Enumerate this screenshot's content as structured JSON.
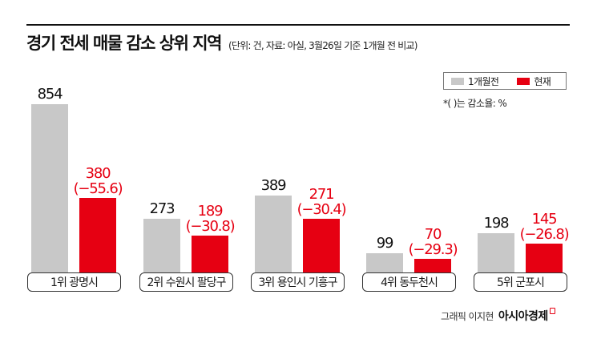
{
  "header": {
    "title": "경기 전세 매물 감소 상위 지역",
    "subtitle": "(단위: 건, 자료: 아실, 3월26일 기준 1개월 전 비교)"
  },
  "legend": {
    "items": [
      {
        "label": "1개월전",
        "color": "#c8c8c8"
      },
      {
        "label": "현재",
        "color": "#e60012"
      }
    ],
    "note": "*( )는 감소율: %"
  },
  "chart_data": {
    "type": "bar",
    "title": "경기 전세 매물 감소 상위 지역",
    "subtitle": "(단위: 건, 자료: 아실, 3월26일 기준 1개월 전 비교)",
    "xlabel": "",
    "ylabel": "건",
    "categories": [
      "1위 광명시",
      "2위 수원시 팔당구",
      "3위 용인시 기흥구",
      "4위 동두천시",
      "5위 군포시"
    ],
    "series": [
      {
        "name": "1개월전",
        "color": "#c8c8c8",
        "values": [
          854,
          273,
          389,
          99,
          198
        ],
        "labels": [
          "854",
          "273",
          "389",
          "99",
          "198"
        ]
      },
      {
        "name": "현재",
        "color": "#e60012",
        "values": [
          380,
          189,
          271,
          70,
          145
        ],
        "labels": [
          "380",
          "189",
          "271",
          "70",
          "145"
        ],
        "change_pct": [
          -55.6,
          -30.8,
          -30.4,
          -29.3,
          -26.8
        ],
        "change_labels": [
          "(−55.6)",
          "(−30.8)",
          "(−30.4)",
          "(−29.3)",
          "(−26.8)"
        ]
      }
    ],
    "ylim": [
      0,
      854
    ],
    "grid": false,
    "legend_position": "top-right",
    "annotations": [
      "*( )는 감소율: %"
    ]
  },
  "footer": {
    "credit": "그래픽 이지현",
    "brand": "아시아경제"
  }
}
